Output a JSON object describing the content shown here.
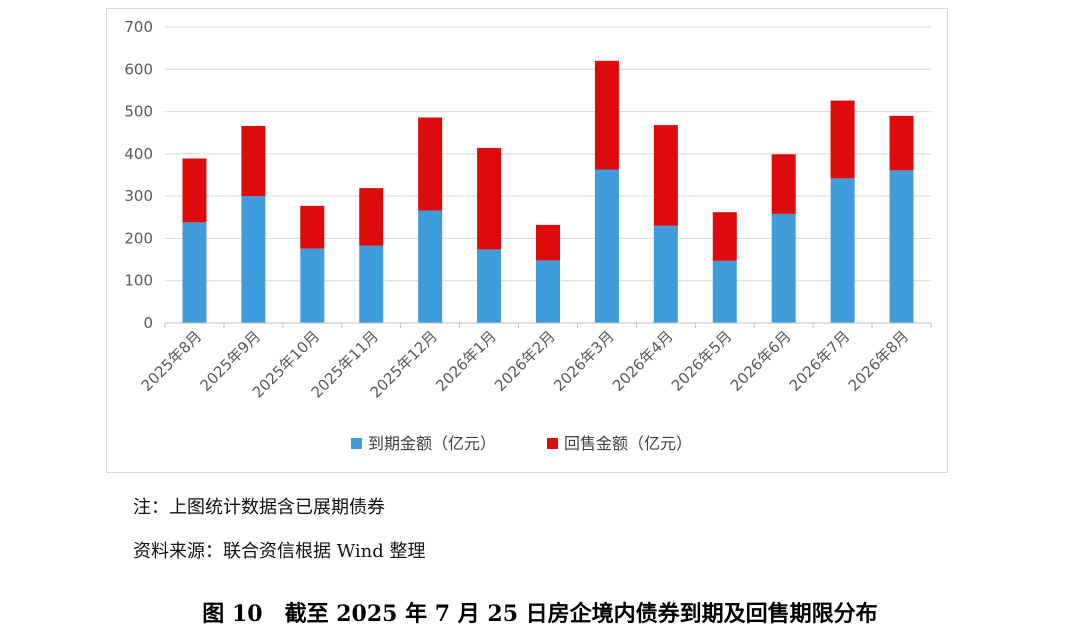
{
  "chart_data": {
    "type": "bar",
    "stacked": true,
    "categories": [
      "2025年8月",
      "2025年9月",
      "2025年10月",
      "2025年11月",
      "2025年12月",
      "2026年1月",
      "2026年2月",
      "2026年3月",
      "2026年4月",
      "2026年5月",
      "2026年6月",
      "2026年7月",
      "2026年8月"
    ],
    "series": [
      {
        "name": "到期金额（亿元）",
        "color": "#3f9ddc",
        "values": [
          238,
          300,
          176,
          183,
          266,
          174,
          148,
          363,
          230,
          147,
          258,
          342,
          361
        ]
      },
      {
        "name": "回售金额（亿元）",
        "color": "#dd0b0b",
        "values": [
          151,
          166,
          101,
          136,
          220,
          240,
          84,
          257,
          238,
          115,
          141,
          184,
          129
        ]
      }
    ],
    "ylim": [
      0,
      700
    ],
    "yticks": [
      "0",
      "100",
      "200",
      "300",
      "400",
      "500",
      "600",
      "700"
    ],
    "grid": true,
    "legend": "bottom"
  },
  "notes": {
    "note1": "注：上图统计数据含已展期债券",
    "note2": "资料来源：联合资信根据 Wind 整理"
  },
  "caption": "图 10　截至 2025 年 7 月 25 日房企境内债券到期及回售期限分布"
}
